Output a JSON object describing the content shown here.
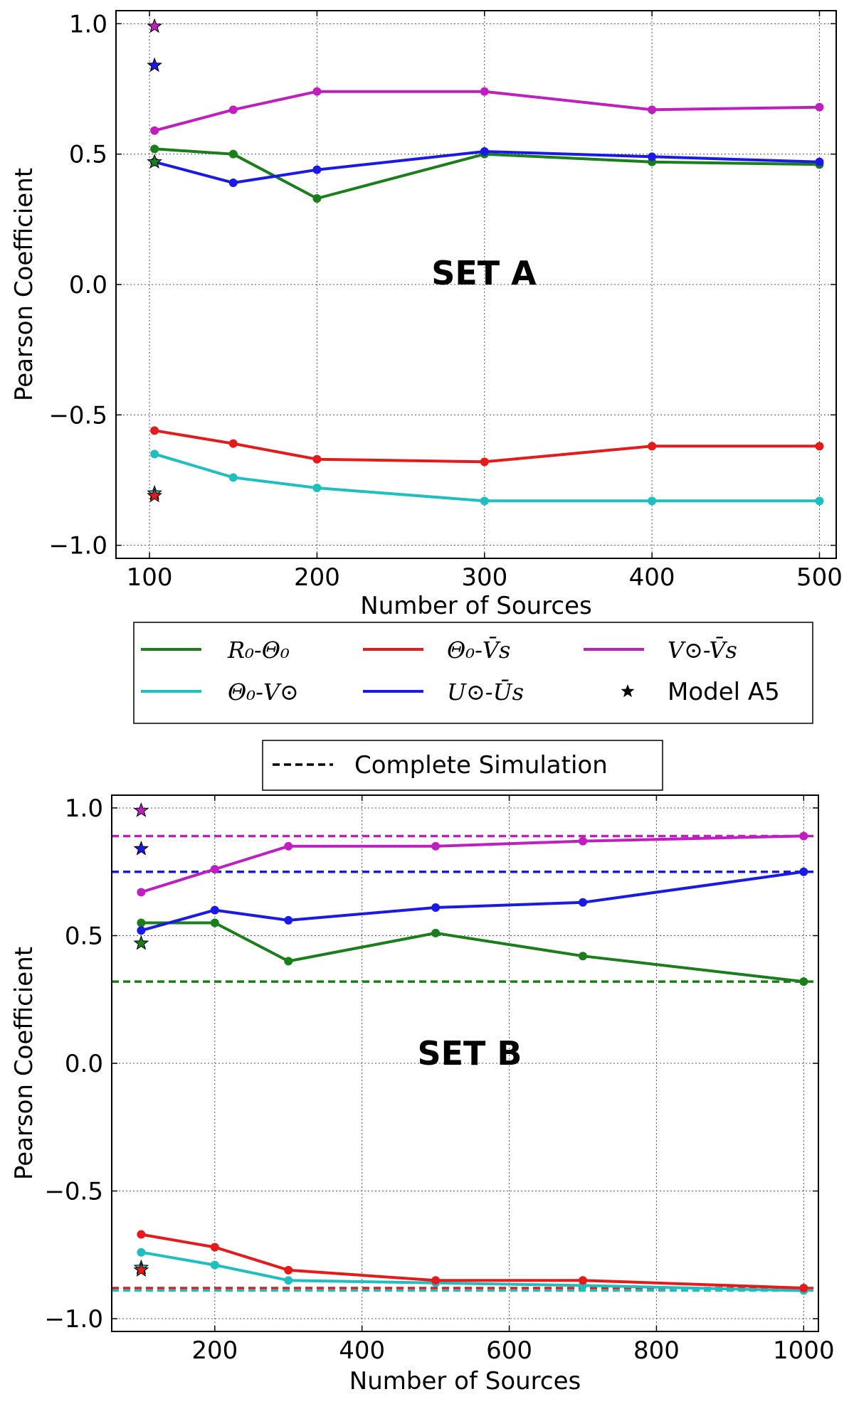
{
  "chart_data": [
    {
      "id": "set-a",
      "type": "line",
      "annotation": "SET A",
      "xlabel": "Number of Sources",
      "ylabel": "Pearson Coefficient",
      "xlim": [
        80,
        510
      ],
      "ylim": [
        -1.05,
        1.05
      ],
      "xticks": [
        100,
        200,
        300,
        400,
        500
      ],
      "xtick_labels": [
        "100",
        "200",
        "300",
        "400",
        "500"
      ],
      "yticks": [
        1.0,
        0.5,
        0.0,
        -0.5,
        -1.0
      ],
      "ytick_labels": [
        "1.0",
        "0.5",
        "0.0",
        "−0.5",
        "−1.0"
      ],
      "x": [
        103,
        150,
        200,
        300,
        400,
        500
      ],
      "series": [
        {
          "key": "r0-theta0",
          "name": "R₀-Θ₀",
          "color": "#1a7f1a",
          "values": [
            0.52,
            0.5,
            0.33,
            0.5,
            0.47,
            0.46
          ]
        },
        {
          "key": "theta0-vsun",
          "name": "Θ₀-V⊙",
          "color": "#1fbfbf",
          "values": [
            -0.65,
            -0.74,
            -0.78,
            -0.83,
            -0.83,
            -0.83
          ]
        },
        {
          "key": "theta0-vs",
          "name": "Θ₀-V̄s",
          "color": "#e61a1a",
          "values": [
            -0.56,
            -0.61,
            -0.67,
            -0.68,
            -0.62,
            -0.62
          ]
        },
        {
          "key": "usun-us",
          "name": "U⊙-Ūs",
          "color": "#1a1ae6",
          "values": [
            0.47,
            0.39,
            0.44,
            0.51,
            0.49,
            0.47
          ]
        },
        {
          "key": "vsun-vs",
          "name": "V⊙-V̄s",
          "color": "#bf1fbf",
          "values": [
            0.59,
            0.67,
            0.74,
            0.74,
            0.67,
            0.68
          ]
        }
      ],
      "model_stars": {
        "name": "Model A5",
        "x": 103,
        "points": [
          {
            "series": "vsun-vs",
            "value": 0.99
          },
          {
            "series": "usun-us",
            "value": 0.84
          },
          {
            "series": "r0-theta0",
            "value": 0.47
          },
          {
            "series": "theta0-vsun",
            "value": -0.8
          },
          {
            "series": "theta0-vs",
            "value": -0.81
          }
        ]
      }
    },
    {
      "id": "set-b",
      "type": "line",
      "annotation": "SET B",
      "xlabel": "Number of Sources",
      "ylabel": "Pearson Coefficient",
      "xlim": [
        60,
        1020
      ],
      "ylim": [
        -1.05,
        1.05
      ],
      "xticks": [
        200,
        400,
        600,
        800,
        1000
      ],
      "xtick_labels": [
        "200",
        "400",
        "600",
        "800",
        "1000"
      ],
      "yticks": [
        1.0,
        0.5,
        0.0,
        -0.5,
        -1.0
      ],
      "ytick_labels": [
        "1.0",
        "0.5",
        "0.0",
        "−0.5",
        "−1.0"
      ],
      "x": [
        100,
        200,
        300,
        500,
        700,
        1000
      ],
      "series": [
        {
          "key": "r0-theta0",
          "name": "R₀-Θ₀",
          "color": "#1a7f1a",
          "values": [
            0.55,
            0.55,
            0.4,
            0.51,
            0.42,
            0.32
          ]
        },
        {
          "key": "theta0-vsun",
          "name": "Θ₀-V⊙",
          "color": "#1fbfbf",
          "values": [
            -0.74,
            -0.79,
            -0.85,
            -0.86,
            -0.87,
            -0.89
          ]
        },
        {
          "key": "theta0-vs",
          "name": "Θ₀-V̄s",
          "color": "#e61a1a",
          "values": [
            -0.67,
            -0.72,
            -0.81,
            -0.85,
            -0.85,
            -0.88
          ]
        },
        {
          "key": "usun-us",
          "name": "U⊙-Ūs",
          "color": "#1a1ae6",
          "values": [
            0.52,
            0.6,
            0.56,
            0.61,
            0.63,
            0.75
          ]
        },
        {
          "key": "vsun-vs",
          "name": "V⊙-V̄s",
          "color": "#bf1fbf",
          "values": [
            0.67,
            0.76,
            0.85,
            0.85,
            0.87,
            0.89
          ]
        }
      ],
      "complete_simulation": [
        {
          "series": "vsun-vs",
          "value": 0.89
        },
        {
          "series": "usun-us",
          "value": 0.75
        },
        {
          "series": "r0-theta0",
          "value": 0.32
        },
        {
          "series": "theta0-vs",
          "value": -0.88
        },
        {
          "series": "theta0-vsun",
          "value": -0.89
        }
      ],
      "model_stars": {
        "name": "Model A5",
        "x": 100,
        "points": [
          {
            "series": "vsun-vs",
            "value": 0.99
          },
          {
            "series": "usun-us",
            "value": 0.84
          },
          {
            "series": "r0-theta0",
            "value": 0.47
          },
          {
            "series": "theta0-vsun",
            "value": -0.8
          },
          {
            "series": "theta0-vs",
            "value": -0.81
          }
        ]
      }
    }
  ],
  "legend": {
    "items": [
      {
        "key": "r0-theta0",
        "label": "R₀-Θ₀",
        "math": true,
        "color": "#1a7f1a"
      },
      {
        "key": "theta0-vs",
        "label": "Θ₀-V̄s",
        "math": true,
        "color": "#e61a1a"
      },
      {
        "key": "vsun-vs",
        "label": "V⊙-V̄s",
        "math": true,
        "color": "#bf1fbf"
      },
      {
        "key": "theta0-vsun",
        "label": "Θ₀-V⊙",
        "math": true,
        "color": "#1fbfbf"
      },
      {
        "key": "usun-us",
        "label": "U⊙-Ūs",
        "math": true,
        "color": "#1a1ae6"
      },
      {
        "key": "model-a5",
        "label": "Model A5",
        "math": false,
        "color": "#000000"
      }
    ],
    "simulation_label": "Complete Simulation"
  }
}
